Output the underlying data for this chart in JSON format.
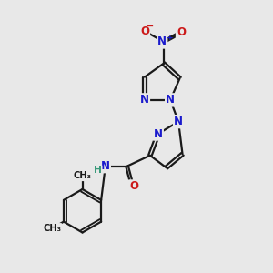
{
  "bg_color": "#e8e8e8",
  "bond_color": "#1a1a1a",
  "bond_width": 1.6,
  "dbo": 0.06,
  "atom_colors": {
    "N": "#1a1acc",
    "O": "#cc1a1a",
    "C": "#1a1a1a",
    "H": "#3a9a7a"
  },
  "fs": 8.5,
  "fss": 7.2
}
